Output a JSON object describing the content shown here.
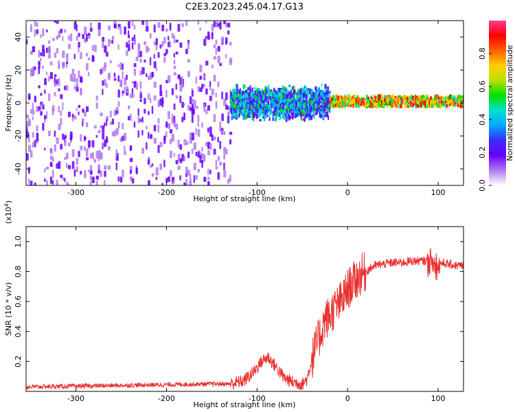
{
  "figure": {
    "title": "C2E3.2023.245.04.17.G13"
  },
  "colors": {
    "snr_line": "#e8302f",
    "colormap": [
      "#ffffff",
      "#b07cf0",
      "#6a00ff",
      "#3a2bff",
      "#00a8ff",
      "#00e0d0",
      "#00e000",
      "#b8e000",
      "#ffd000",
      "#ff6000",
      "#ff0000",
      "#ff3a8a"
    ]
  },
  "chart_data": [
    {
      "type": "heatmap",
      "xlabel": "Height of straight line (km)",
      "ylabel": "Frequency (Hz)",
      "xlim": [
        -355,
        128
      ],
      "ylim": [
        -50,
        50
      ],
      "xticks": [
        -300,
        -200,
        -100,
        0,
        100
      ],
      "yticks": [
        -40,
        -20,
        0,
        20,
        40
      ],
      "colorbar": {
        "label": "Normalized spectral amplitude",
        "ticks": [
          0.0,
          0.2,
          0.4,
          0.6,
          0.8
        ],
        "tick_labels": [
          "0.0",
          "0.2",
          "0.4",
          "0.6",
          "0.8"
        ],
        "range": [
          0,
          1
        ]
      },
      "description_regions": [
        {
          "x": [
            -355,
            -130
          ],
          "band_hz": [
            -50,
            50
          ],
          "amplitude": [
            0.05,
            0.2
          ]
        },
        {
          "x": [
            -130,
            -20
          ],
          "band_hz": [
            -12,
            10
          ],
          "amplitude": [
            0.15,
            0.55
          ]
        },
        {
          "x": [
            -20,
            128
          ],
          "band_hz": [
            -2,
            4
          ],
          "amplitude": [
            0.45,
            0.95
          ]
        }
      ]
    },
    {
      "type": "line",
      "xlabel": "Height of straight line (km)",
      "ylabel": "SNR (10 * v/v)",
      "y_multiplier": "(x10",
      "y_multiplier_exp": "4",
      "y_multiplier_close": ")",
      "xlim": [
        -355,
        128
      ],
      "ylim": [
        0,
        1.1
      ],
      "xticks": [
        -300,
        -200,
        -100,
        0,
        100
      ],
      "yticks": [
        0.2,
        0.4,
        0.6,
        0.8,
        1.0
      ],
      "ytick_labels": [
        "0.2",
        "0.4",
        "0.6",
        "0.8",
        "1.0"
      ],
      "series": [
        {
          "x": [
            -355,
            -300,
            -250,
            -200,
            -150,
            -130,
            -115,
            -105,
            -95,
            -88,
            -80,
            -70,
            -60,
            -50,
            -45,
            -40,
            -35,
            -30,
            -25,
            -20,
            -15,
            -10,
            -5,
            0,
            5,
            10,
            15,
            20,
            25,
            30,
            40,
            50,
            60,
            70,
            80,
            90,
            95,
            100,
            110,
            120,
            128
          ],
          "y": [
            0.03,
            0.035,
            0.04,
            0.045,
            0.05,
            0.05,
            0.07,
            0.12,
            0.2,
            0.23,
            0.17,
            0.09,
            0.06,
            0.05,
            0.08,
            0.2,
            0.3,
            0.38,
            0.48,
            0.5,
            0.55,
            0.58,
            0.62,
            0.68,
            0.72,
            0.75,
            0.78,
            0.8,
            0.82,
            0.84,
            0.85,
            0.86,
            0.86,
            0.87,
            0.87,
            0.87,
            0.85,
            0.86,
            0.85,
            0.84,
            0.84
          ]
        }
      ]
    }
  ]
}
